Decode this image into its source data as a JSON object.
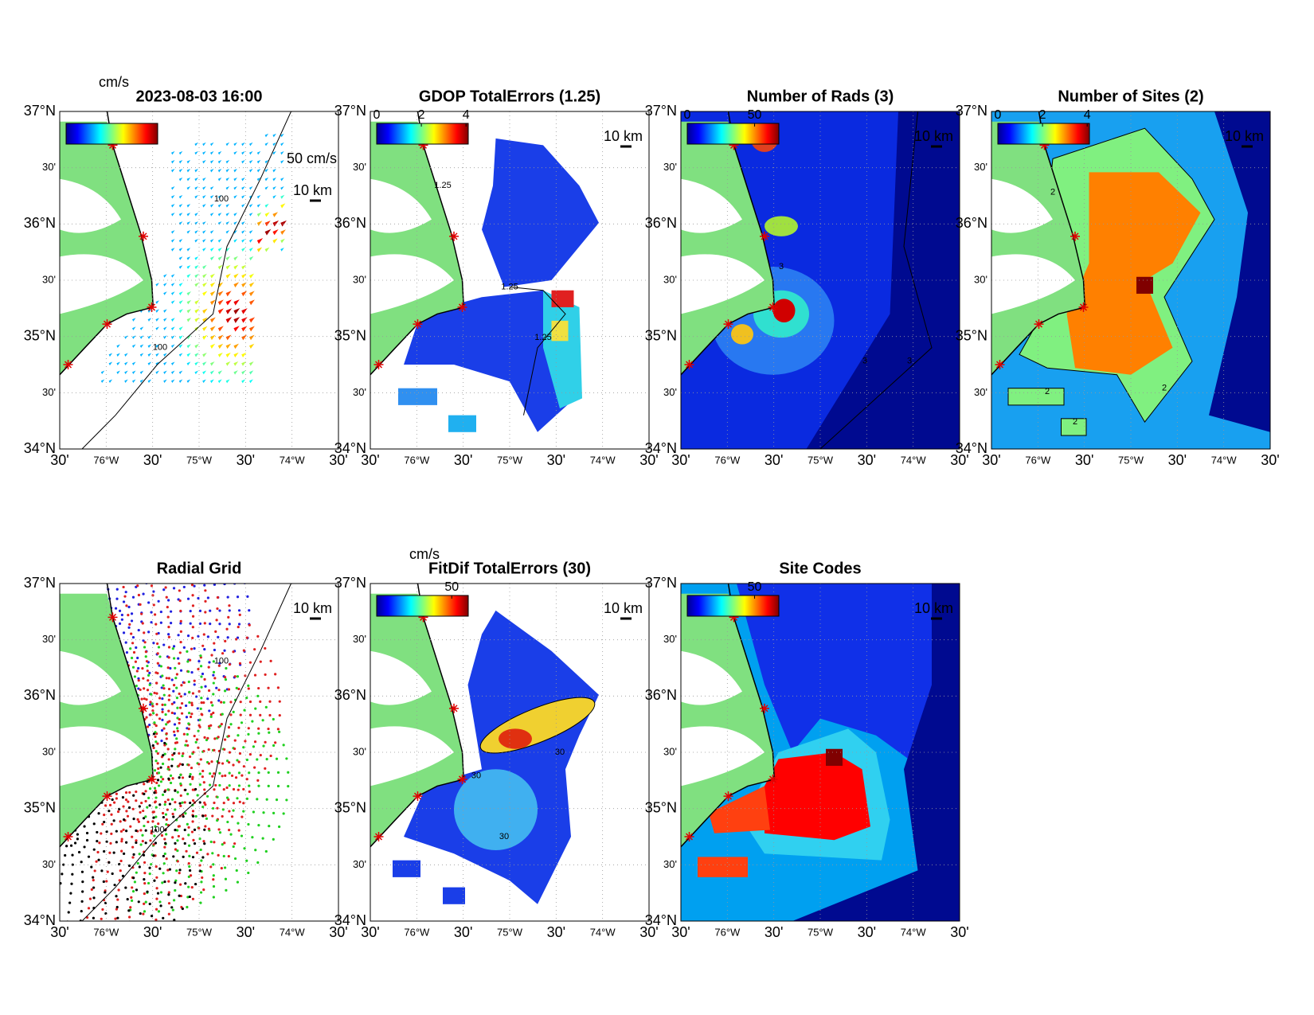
{
  "panels": [
    {
      "title": "2023-08-03 16:00",
      "colorbar": {
        "label": "cm/s"
      },
      "scale_label": "10 km",
      "vector_label": "50 cm/s",
      "contour_labels": [
        "100",
        "100"
      ]
    },
    {
      "title": "GDOP TotalErrors (1.25)",
      "colorbar": {
        "clim": [
          0,
          4.1
        ],
        "ticks": [
          0,
          2,
          4
        ]
      },
      "scale_label": "10 km",
      "contour_labels": [
        "1.25",
        "1.25",
        "1.25"
      ]
    },
    {
      "title": "Number of Rads (3)",
      "colorbar": {
        "clim": [
          0,
          68
        ],
        "ticks": [
          0,
          50
        ]
      },
      "scale_label": "10 km",
      "contour_labels": [
        "3",
        "3",
        "3"
      ]
    },
    {
      "title": "Number of Sites (2)",
      "colorbar": {
        "clim": [
          0,
          4.1
        ],
        "ticks": [
          0,
          2,
          4
        ]
      },
      "scale_label": "10 km",
      "contour_labels": [
        "2",
        "2",
        "2",
        "2"
      ]
    },
    {
      "title": "Radial Grid",
      "scale_label": "10 km",
      "contour_labels": [
        "100",
        "100"
      ]
    },
    {
      "title": "FitDif TotalErrors (30)",
      "colorbar": {
        "label": "cm/s",
        "clim": [
          0,
          61
        ],
        "ticks": [
          50
        ]
      },
      "scale_label": "10 km",
      "contour_labels": [
        "30",
        "30",
        "30"
      ]
    },
    {
      "title": "Site Codes",
      "colorbar": {
        "clim": [
          0,
          68
        ],
        "ticks": [
          50
        ]
      },
      "scale_label": "10 km"
    }
  ],
  "lat_ticks": [
    {
      "value": 37,
      "label": "37°N"
    },
    {
      "value": 36.5,
      "label": "30'"
    },
    {
      "value": 36,
      "label": "36°N"
    },
    {
      "value": 35.5,
      "label": "30'"
    },
    {
      "value": 35,
      "label": "35°N"
    },
    {
      "value": 34.5,
      "label": "30'"
    },
    {
      "value": 34,
      "label": "34°N"
    }
  ],
  "lon_ticks": [
    {
      "value": -76.5,
      "label": "30'"
    },
    {
      "value": -76,
      "label": "76°W"
    },
    {
      "value": -75.5,
      "label": "30'"
    },
    {
      "value": -75,
      "label": "75°W"
    },
    {
      "value": -74.5,
      "label": "30'"
    },
    {
      "value": -74,
      "label": "74°W"
    },
    {
      "value": -73.5,
      "label": "30'"
    }
  ],
  "lon_range": [
    -76.5,
    -73.5
  ],
  "lat_range": [
    34,
    37
  ]
}
